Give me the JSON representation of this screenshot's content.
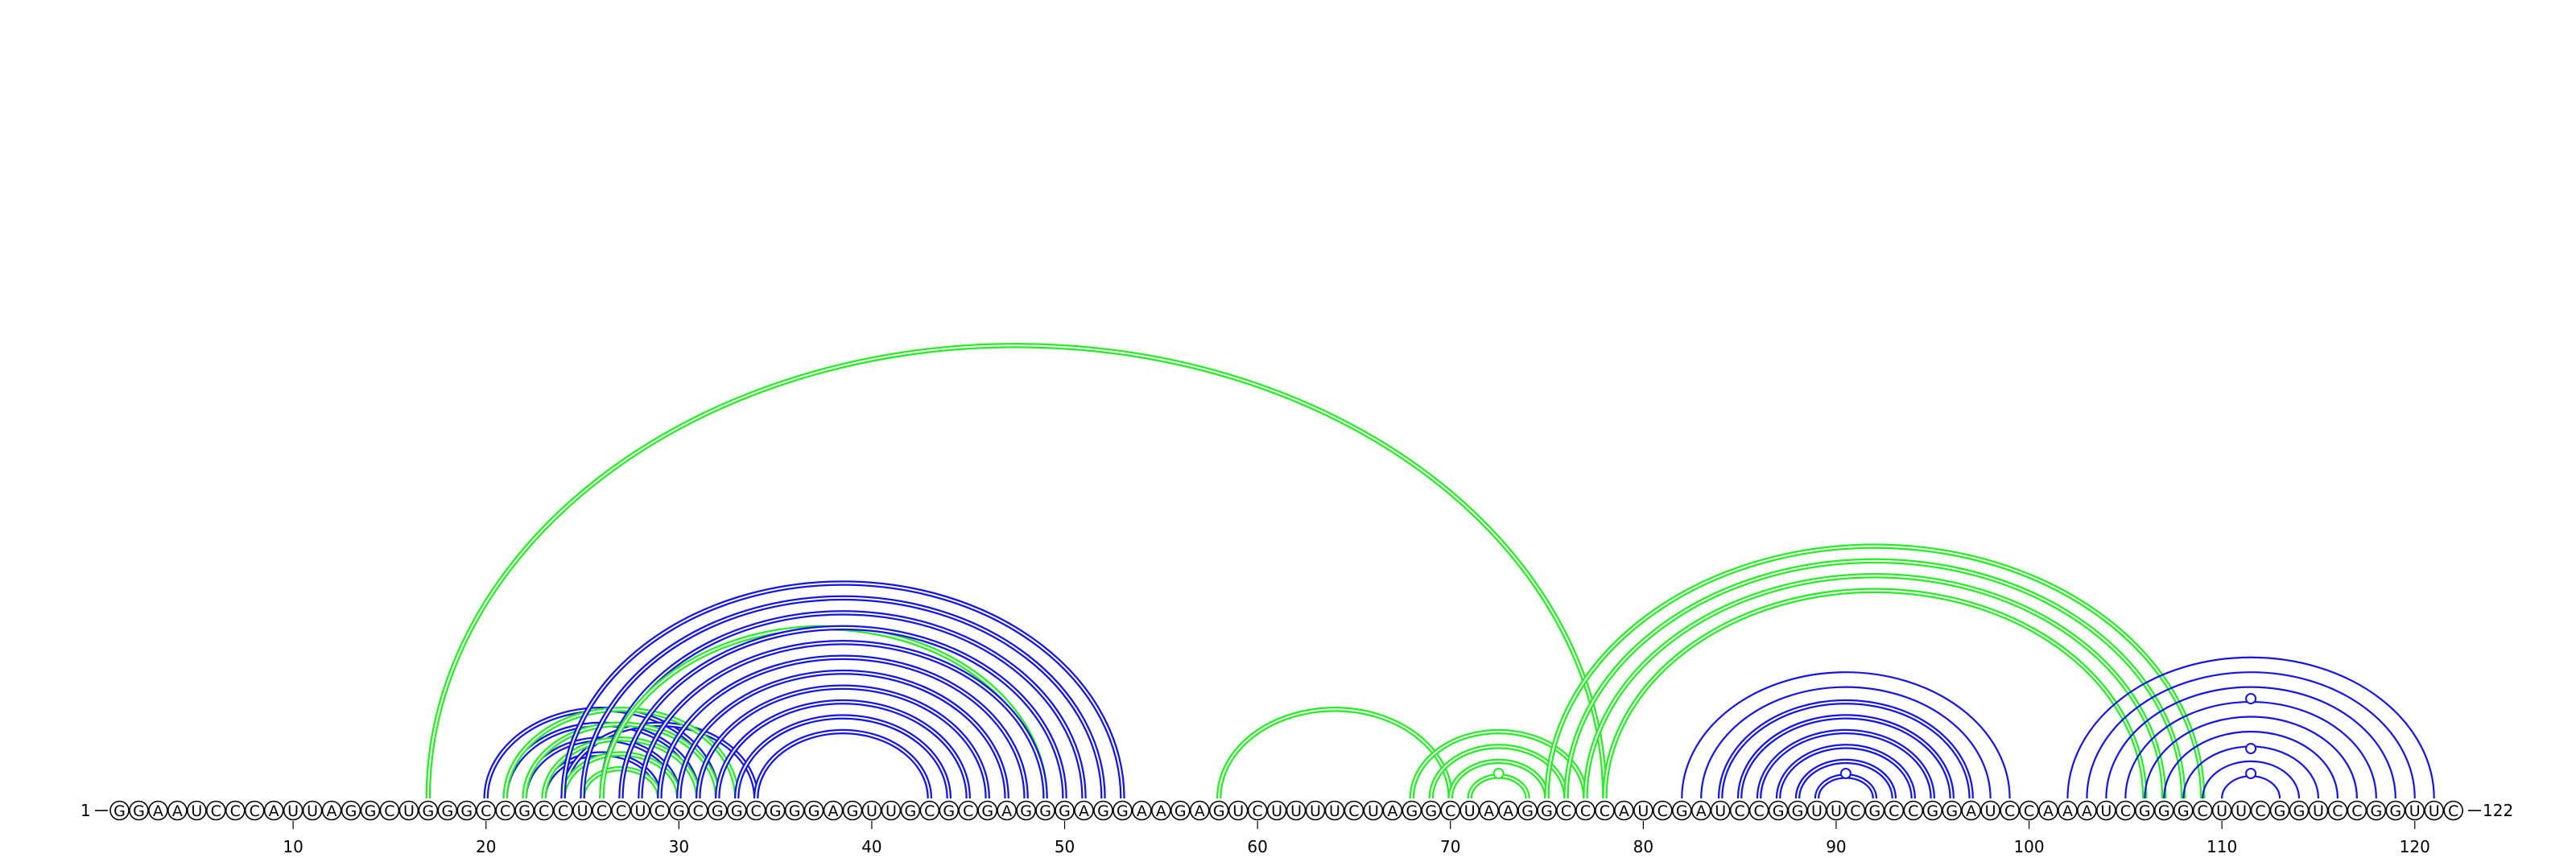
{
  "sequence": "GGAAUCCCAUUAGGCUGGGCCGCCUCCUCGCGGCGGGAGUUGCGCGAGGGAGGAAGAGUCUUUUCUAGGCUAAGGCCCAUCGAUCCGGUUCGCCGGAUCCAAAUCGGGCUUCGGUCCGGUUC",
  "start_label": "1",
  "end_label": "122",
  "ticks": [
    {
      "pos": 10,
      "label": "10"
    },
    {
      "pos": 20,
      "label": "20"
    },
    {
      "pos": 30,
      "label": "30"
    },
    {
      "pos": 40,
      "label": "40"
    },
    {
      "pos": 50,
      "label": "50"
    },
    {
      "pos": 60,
      "label": "60"
    },
    {
      "pos": 70,
      "label": "70"
    },
    {
      "pos": 80,
      "label": "80"
    },
    {
      "pos": 90,
      "label": "90"
    },
    {
      "pos": 100,
      "label": "100"
    },
    {
      "pos": 110,
      "label": "110"
    },
    {
      "pos": 120,
      "label": "120"
    }
  ],
  "colors": {
    "blue": "#1414e6",
    "green": "#22ee22"
  },
  "arcs": [
    {
      "i": 17,
      "j": 78,
      "color": "green",
      "style": "double"
    },
    {
      "i": 20,
      "j": 32,
      "color": "blue",
      "style": "double"
    },
    {
      "i": 21,
      "j": 31,
      "color": "blue",
      "style": "double"
    },
    {
      "i": 22,
      "j": 30,
      "color": "blue",
      "style": "double"
    },
    {
      "i": 23,
      "j": 29,
      "color": "blue",
      "style": "double"
    },
    {
      "i": 24,
      "j": 34,
      "color": "blue",
      "style": "double"
    },
    {
      "i": 21,
      "j": 33,
      "color": "green",
      "style": "double"
    },
    {
      "i": 22,
      "j": 32,
      "color": "green",
      "style": "double"
    },
    {
      "i": 23,
      "j": 31,
      "color": "green",
      "style": "double"
    },
    {
      "i": 24,
      "j": 30,
      "color": "green",
      "style": "double"
    },
    {
      "i": 25,
      "j": 29,
      "color": "green",
      "style": "double"
    },
    {
      "i": 24,
      "j": 53,
      "color": "blue",
      "style": "double"
    },
    {
      "i": 25,
      "j": 52,
      "color": "blue",
      "style": "double"
    },
    {
      "i": 26,
      "j": 51,
      "color": "blue",
      "style": "double"
    },
    {
      "i": 26,
      "j": 49,
      "color": "green",
      "style": "double"
    },
    {
      "i": 27,
      "j": 50,
      "color": "blue",
      "style": "double"
    },
    {
      "i": 28,
      "j": 49,
      "color": "blue",
      "style": "double"
    },
    {
      "i": 29,
      "j": 48,
      "color": "blue",
      "style": "double"
    },
    {
      "i": 30,
      "j": 47,
      "color": "blue",
      "style": "double"
    },
    {
      "i": 31,
      "j": 46,
      "color": "blue",
      "style": "double"
    },
    {
      "i": 32,
      "j": 45,
      "color": "blue",
      "style": "double"
    },
    {
      "i": 33,
      "j": 44,
      "color": "blue",
      "style": "double"
    },
    {
      "i": 34,
      "j": 43,
      "color": "blue",
      "style": "double"
    },
    {
      "i": 58,
      "j": 70,
      "color": "green",
      "style": "double"
    },
    {
      "i": 68,
      "j": 77,
      "color": "green",
      "style": "double"
    },
    {
      "i": 69,
      "j": 76,
      "color": "green",
      "style": "double"
    },
    {
      "i": 70,
      "j": 75,
      "color": "green",
      "style": "double"
    },
    {
      "i": 71,
      "j": 74,
      "color": "green",
      "style": "double"
    },
    {
      "i": 75,
      "j": 109,
      "color": "green",
      "style": "double"
    },
    {
      "i": 76,
      "j": 108,
      "color": "green",
      "style": "double"
    },
    {
      "i": 77,
      "j": 107,
      "color": "green",
      "style": "double"
    },
    {
      "i": 78,
      "j": 106,
      "color": "green",
      "style": "double"
    },
    {
      "i": 82,
      "j": 99,
      "color": "blue",
      "style": "single"
    },
    {
      "i": 83,
      "j": 98,
      "color": "blue",
      "style": "single"
    },
    {
      "i": 84,
      "j": 97,
      "color": "blue",
      "style": "double"
    },
    {
      "i": 85,
      "j": 96,
      "color": "blue",
      "style": "double"
    },
    {
      "i": 86,
      "j": 95,
      "color": "blue",
      "style": "double"
    },
    {
      "i": 87,
      "j": 94,
      "color": "blue",
      "style": "double"
    },
    {
      "i": 88,
      "j": 93,
      "color": "blue",
      "style": "double"
    },
    {
      "i": 89,
      "j": 92,
      "color": "blue",
      "style": "double"
    },
    {
      "i": 102,
      "j": 121,
      "color": "blue",
      "style": "single"
    },
    {
      "i": 103,
      "j": 120,
      "color": "blue",
      "style": "single"
    },
    {
      "i": 104,
      "j": 119,
      "color": "blue",
      "style": "single"
    },
    {
      "i": 105,
      "j": 118,
      "color": "blue",
      "style": "single"
    },
    {
      "i": 106,
      "j": 117,
      "color": "blue",
      "style": "single"
    },
    {
      "i": 107,
      "j": 116,
      "color": "blue",
      "style": "single"
    },
    {
      "i": 108,
      "j": 115,
      "color": "blue",
      "style": "single"
    },
    {
      "i": 109,
      "j": 114,
      "color": "blue",
      "style": "single"
    },
    {
      "i": 110,
      "j": 113,
      "color": "blue",
      "style": "single"
    }
  ],
  "loop_dots": [
    {
      "center": 72.5,
      "level": 1,
      "color": "green"
    },
    {
      "center": 90.5,
      "level": 1,
      "color": "blue"
    },
    {
      "center": 111.5,
      "level": 1,
      "color": "blue"
    },
    {
      "center": 111.5,
      "level": 2,
      "color": "blue"
    },
    {
      "center": 111.5,
      "level": 4,
      "color": "blue"
    }
  ]
}
